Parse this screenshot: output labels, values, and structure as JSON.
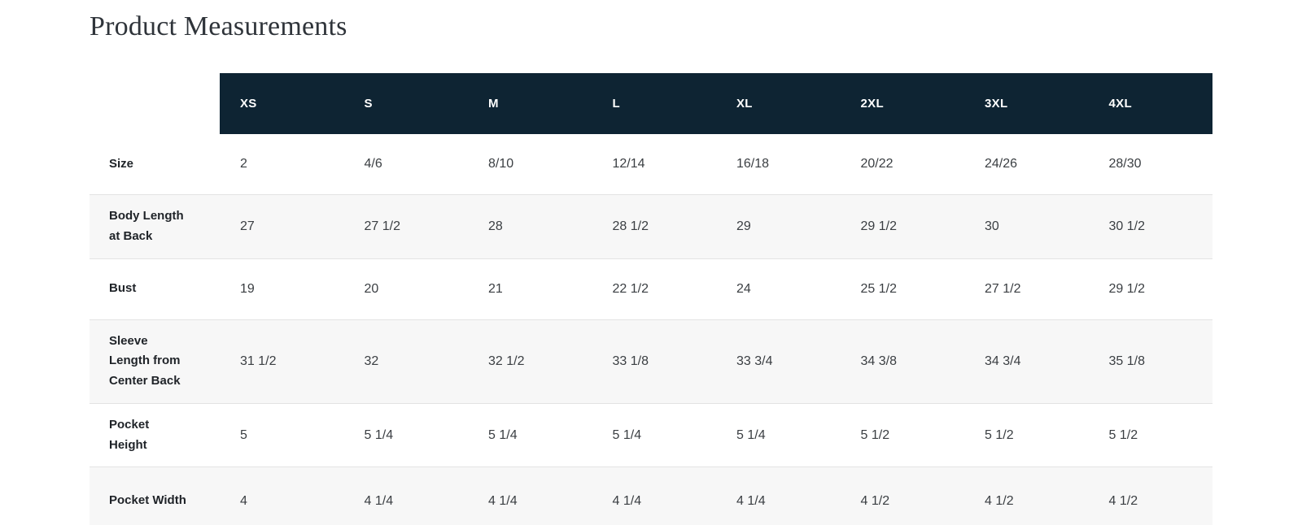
{
  "page": {
    "title": "Product Measurements"
  },
  "table": {
    "size_headers": [
      "XS",
      "S",
      "M",
      "L",
      "XL",
      "2XL",
      "3XL",
      "4XL"
    ],
    "rows": [
      {
        "label": "Size",
        "values": [
          "2",
          "4/6",
          "8/10",
          "12/14",
          "16/18",
          "20/22",
          "24/26",
          "28/30"
        ]
      },
      {
        "label": "Body Length\nat Back",
        "values": [
          "27",
          "27 1/2",
          "28",
          "28 1/2",
          "29",
          "29 1/2",
          "30",
          "30 1/2"
        ]
      },
      {
        "label": "Bust",
        "values": [
          "19",
          "20",
          "21",
          "22 1/2",
          "24",
          "25 1/2",
          "27 1/2",
          "29 1/2"
        ]
      },
      {
        "label": "Sleeve\nLength from\nCenter Back",
        "values": [
          "31 1/2",
          "32",
          "32 1/2",
          "33 1/8",
          "33 3/4",
          "34 3/8",
          "34 3/4",
          "35 1/8"
        ]
      },
      {
        "label": "Pocket\nHeight",
        "values": [
          "5",
          "5 1/4",
          "5 1/4",
          "5 1/4",
          "5 1/4",
          "5 1/2",
          "5 1/2",
          "5 1/2"
        ]
      },
      {
        "label": "Pocket Width",
        "values": [
          "4",
          "4 1/4",
          "4 1/4",
          "4 1/4",
          "4 1/4",
          "4 1/2",
          "4 1/2",
          "4 1/2"
        ]
      }
    ],
    "colors": {
      "header_bg": "#0e2433",
      "header_text": "#ffffff",
      "stripe_bg": "#f7f7f7",
      "border": "#e3e3e3"
    }
  }
}
